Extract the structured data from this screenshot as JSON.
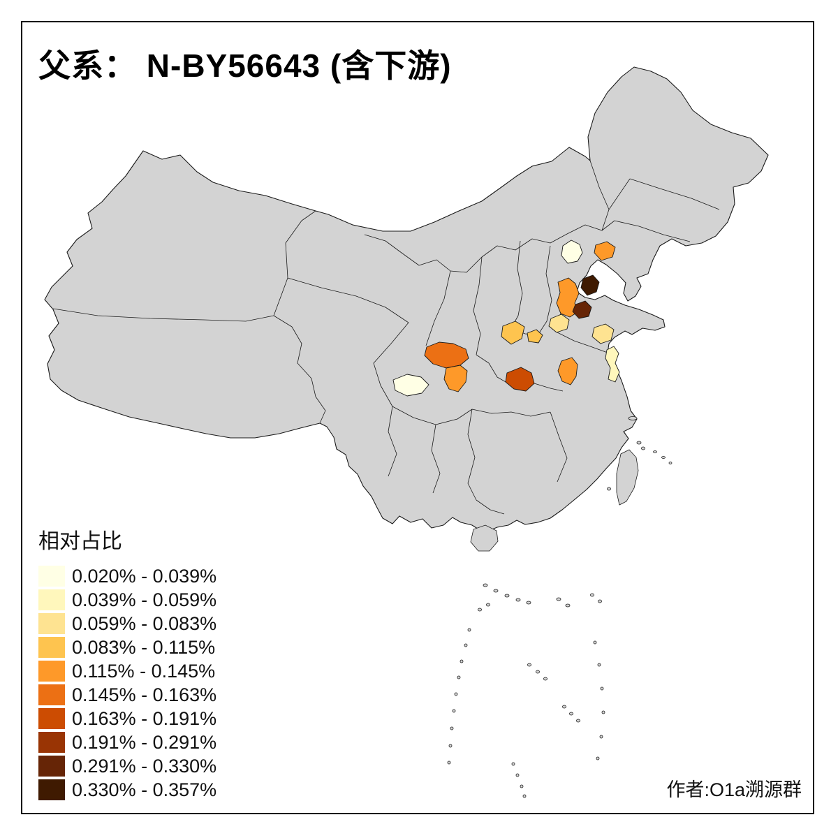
{
  "title": "父系： N-BY56643 (含下游)",
  "attribution": "作者:O1a溯源群",
  "legend": {
    "title": "相对占比",
    "items": [
      {
        "label": "0.020% - 0.039%",
        "color": "#FFFFE5"
      },
      {
        "label": "0.039% - 0.059%",
        "color": "#FFF7BC"
      },
      {
        "label": "0.059% - 0.083%",
        "color": "#FEE391"
      },
      {
        "label": "0.083% - 0.115%",
        "color": "#FEC44F"
      },
      {
        "label": "0.115% - 0.145%",
        "color": "#FE9929"
      },
      {
        "label": "0.145% - 0.163%",
        "color": "#EC7014"
      },
      {
        "label": "0.163% - 0.191%",
        "color": "#CC4C02"
      },
      {
        "label": "0.191% - 0.291%",
        "color": "#993404"
      },
      {
        "label": "0.291% - 0.330%",
        "color": "#662506"
      },
      {
        "label": "0.330% - 0.357%",
        "color": "#3F1A01"
      }
    ]
  },
  "map": {
    "land_color": "#D3D3D3",
    "border_color": "#1A1A1A",
    "background_color": "#FFFFFF",
    "regions": [
      {
        "id": "region-01",
        "color": "#FFFFE5",
        "range": "0.020% - 0.039%"
      },
      {
        "id": "region-02",
        "color": "#FE9929",
        "range": "0.115% - 0.145%"
      },
      {
        "id": "region-03",
        "color": "#FE9929",
        "range": "0.115% - 0.145%"
      },
      {
        "id": "region-04",
        "color": "#3F1A01",
        "range": "0.330% - 0.357%"
      },
      {
        "id": "region-05",
        "color": "#662506",
        "range": "0.291% - 0.330%"
      },
      {
        "id": "region-06",
        "color": "#FEE391",
        "range": "0.059% - 0.083%"
      },
      {
        "id": "region-07",
        "color": "#FEC44F",
        "range": "0.083% - 0.115%"
      },
      {
        "id": "region-08",
        "color": "#FEC44F",
        "range": "0.083% - 0.115%"
      },
      {
        "id": "region-09",
        "color": "#FEE391",
        "range": "0.059% - 0.083%"
      },
      {
        "id": "region-10",
        "color": "#EC7014",
        "range": "0.145% - 0.163%"
      },
      {
        "id": "region-11",
        "color": "#FE9929",
        "range": "0.115% - 0.145%"
      },
      {
        "id": "region-12",
        "color": "#FFFFE5",
        "range": "0.020% - 0.039%"
      },
      {
        "id": "region-13",
        "color": "#CC4C02",
        "range": "0.163% - 0.191%"
      },
      {
        "id": "region-14",
        "color": "#FE9929",
        "range": "0.115% - 0.145%"
      },
      {
        "id": "region-15",
        "color": "#FFF7BC",
        "range": "0.039% - 0.059%"
      }
    ]
  }
}
